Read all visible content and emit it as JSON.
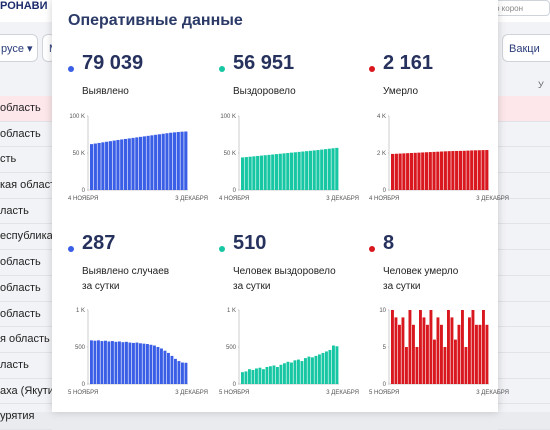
{
  "background": {
    "logo": "РОНАВИ",
    "search_text": "о корон",
    "filter_left": "русе ▾",
    "filter_mid": "М",
    "filter_right": "Вакци",
    "col_header": "У",
    "regions": [
      "область",
      "область",
      "сть",
      "кая област",
      "ласть",
      "еспублика",
      "область",
      "область",
      "область",
      "я область",
      "ласть",
      "аха (Якутия",
      "урятия"
    ]
  },
  "modal": {
    "title": "Оперативные данные"
  },
  "colors": {
    "blue": "#3a5ee6",
    "teal": "#17c7a3",
    "red": "#d8171e"
  },
  "cards": [
    {
      "id": "detected",
      "dot": "blue",
      "value": "79 039",
      "label": [
        "Выявлено"
      ]
    },
    {
      "id": "recovered",
      "dot": "teal",
      "value": "56 951",
      "label": [
        "Выздоровело"
      ]
    },
    {
      "id": "died",
      "dot": "red",
      "value": "2 161",
      "label": [
        "Умерло"
      ]
    },
    {
      "id": "detected-day",
      "dot": "blue",
      "value": "287",
      "label": [
        "Выявлено случаев",
        "за сутки"
      ]
    },
    {
      "id": "recovered-day",
      "dot": "teal",
      "value": "510",
      "label": [
        "Человек выздоровело",
        "за сутки"
      ]
    },
    {
      "id": "died-day",
      "dot": "red",
      "value": "8",
      "label": [
        "Человек умерло",
        "за сутки"
      ]
    }
  ],
  "chart_data": [
    {
      "type": "bar",
      "series": "detected",
      "color": "blue",
      "yticks": [
        "100 K",
        "50 K",
        "0"
      ],
      "ylim": [
        0,
        100000
      ],
      "xlabels": [
        "4 НОЯБРЯ",
        "3 ДЕКАБРЯ"
      ],
      "values": [
        62000,
        62800,
        63600,
        64400,
        65200,
        66000,
        66800,
        67600,
        68300,
        69000,
        69700,
        70400,
        71100,
        71800,
        72500,
        73200,
        73900,
        74600,
        75300,
        76000,
        76700,
        77400,
        77900,
        78400,
        78800,
        79039
      ]
    },
    {
      "type": "bar",
      "series": "recovered",
      "color": "teal",
      "yticks": [
        "100 K",
        "50 K",
        "0"
      ],
      "ylim": [
        0,
        100000
      ],
      "xlabels": [
        "4 НОЯБРЯ",
        "3 ДЕКАБРЯ"
      ],
      "values": [
        44000,
        44500,
        45000,
        45500,
        46000,
        46500,
        47000,
        47500,
        48000,
        48500,
        49000,
        49500,
        50000,
        50500,
        51000,
        51500,
        52000,
        52500,
        53000,
        53500,
        54000,
        54600,
        55200,
        55800,
        56400,
        56951
      ]
    },
    {
      "type": "bar",
      "series": "died",
      "color": "red",
      "yticks": [
        "4 K",
        "2 K",
        "0"
      ],
      "ylim": [
        0,
        4000
      ],
      "xlabels": [
        "4 НОЯБРЯ",
        "3 ДЕКАБРЯ"
      ],
      "values": [
        1950,
        1960,
        1970,
        1980,
        1990,
        2000,
        2010,
        2020,
        2030,
        2040,
        2050,
        2060,
        2070,
        2080,
        2090,
        2100,
        2105,
        2110,
        2115,
        2120,
        2130,
        2140,
        2145,
        2150,
        2156,
        2161
      ]
    },
    {
      "type": "bar",
      "series": "detected-day",
      "color": "blue",
      "yticks": [
        "1 K",
        "500",
        "0"
      ],
      "ylim": [
        0,
        1000
      ],
      "xlabels": [
        "5 НОЯБРЯ",
        "3 ДЕКАБРЯ"
      ],
      "values": [
        590,
        585,
        590,
        580,
        585,
        575,
        580,
        570,
        575,
        565,
        570,
        560,
        555,
        560,
        550,
        545,
        540,
        530,
        520,
        500,
        480,
        450,
        420,
        380,
        340,
        310,
        290,
        287
      ]
    },
    {
      "type": "bar",
      "series": "recovered-day",
      "color": "teal",
      "yticks": [
        "1 K",
        "500",
        "0"
      ],
      "ylim": [
        0,
        1000
      ],
      "xlabels": [
        "5 НОЯБРЯ",
        "3 ДЕКАБРЯ"
      ],
      "values": [
        160,
        170,
        200,
        190,
        210,
        220,
        200,
        230,
        240,
        250,
        230,
        260,
        280,
        300,
        290,
        320,
        330,
        310,
        350,
        370,
        360,
        380,
        400,
        420,
        440,
        460,
        520,
        510
      ]
    },
    {
      "type": "bar",
      "series": "died-day",
      "color": "red",
      "yticks": [
        "10",
        "5",
        "0"
      ],
      "ylim": [
        0,
        10
      ],
      "xlabels": [
        "5 НОЯБРЯ",
        "3 ДЕКАБРЯ"
      ],
      "values": [
        10,
        9,
        8,
        9,
        5,
        10,
        8,
        5,
        10,
        9,
        8,
        10,
        6,
        9,
        8,
        5,
        10,
        9,
        6,
        8,
        10,
        5,
        9,
        10,
        8,
        8,
        10,
        8
      ]
    }
  ]
}
